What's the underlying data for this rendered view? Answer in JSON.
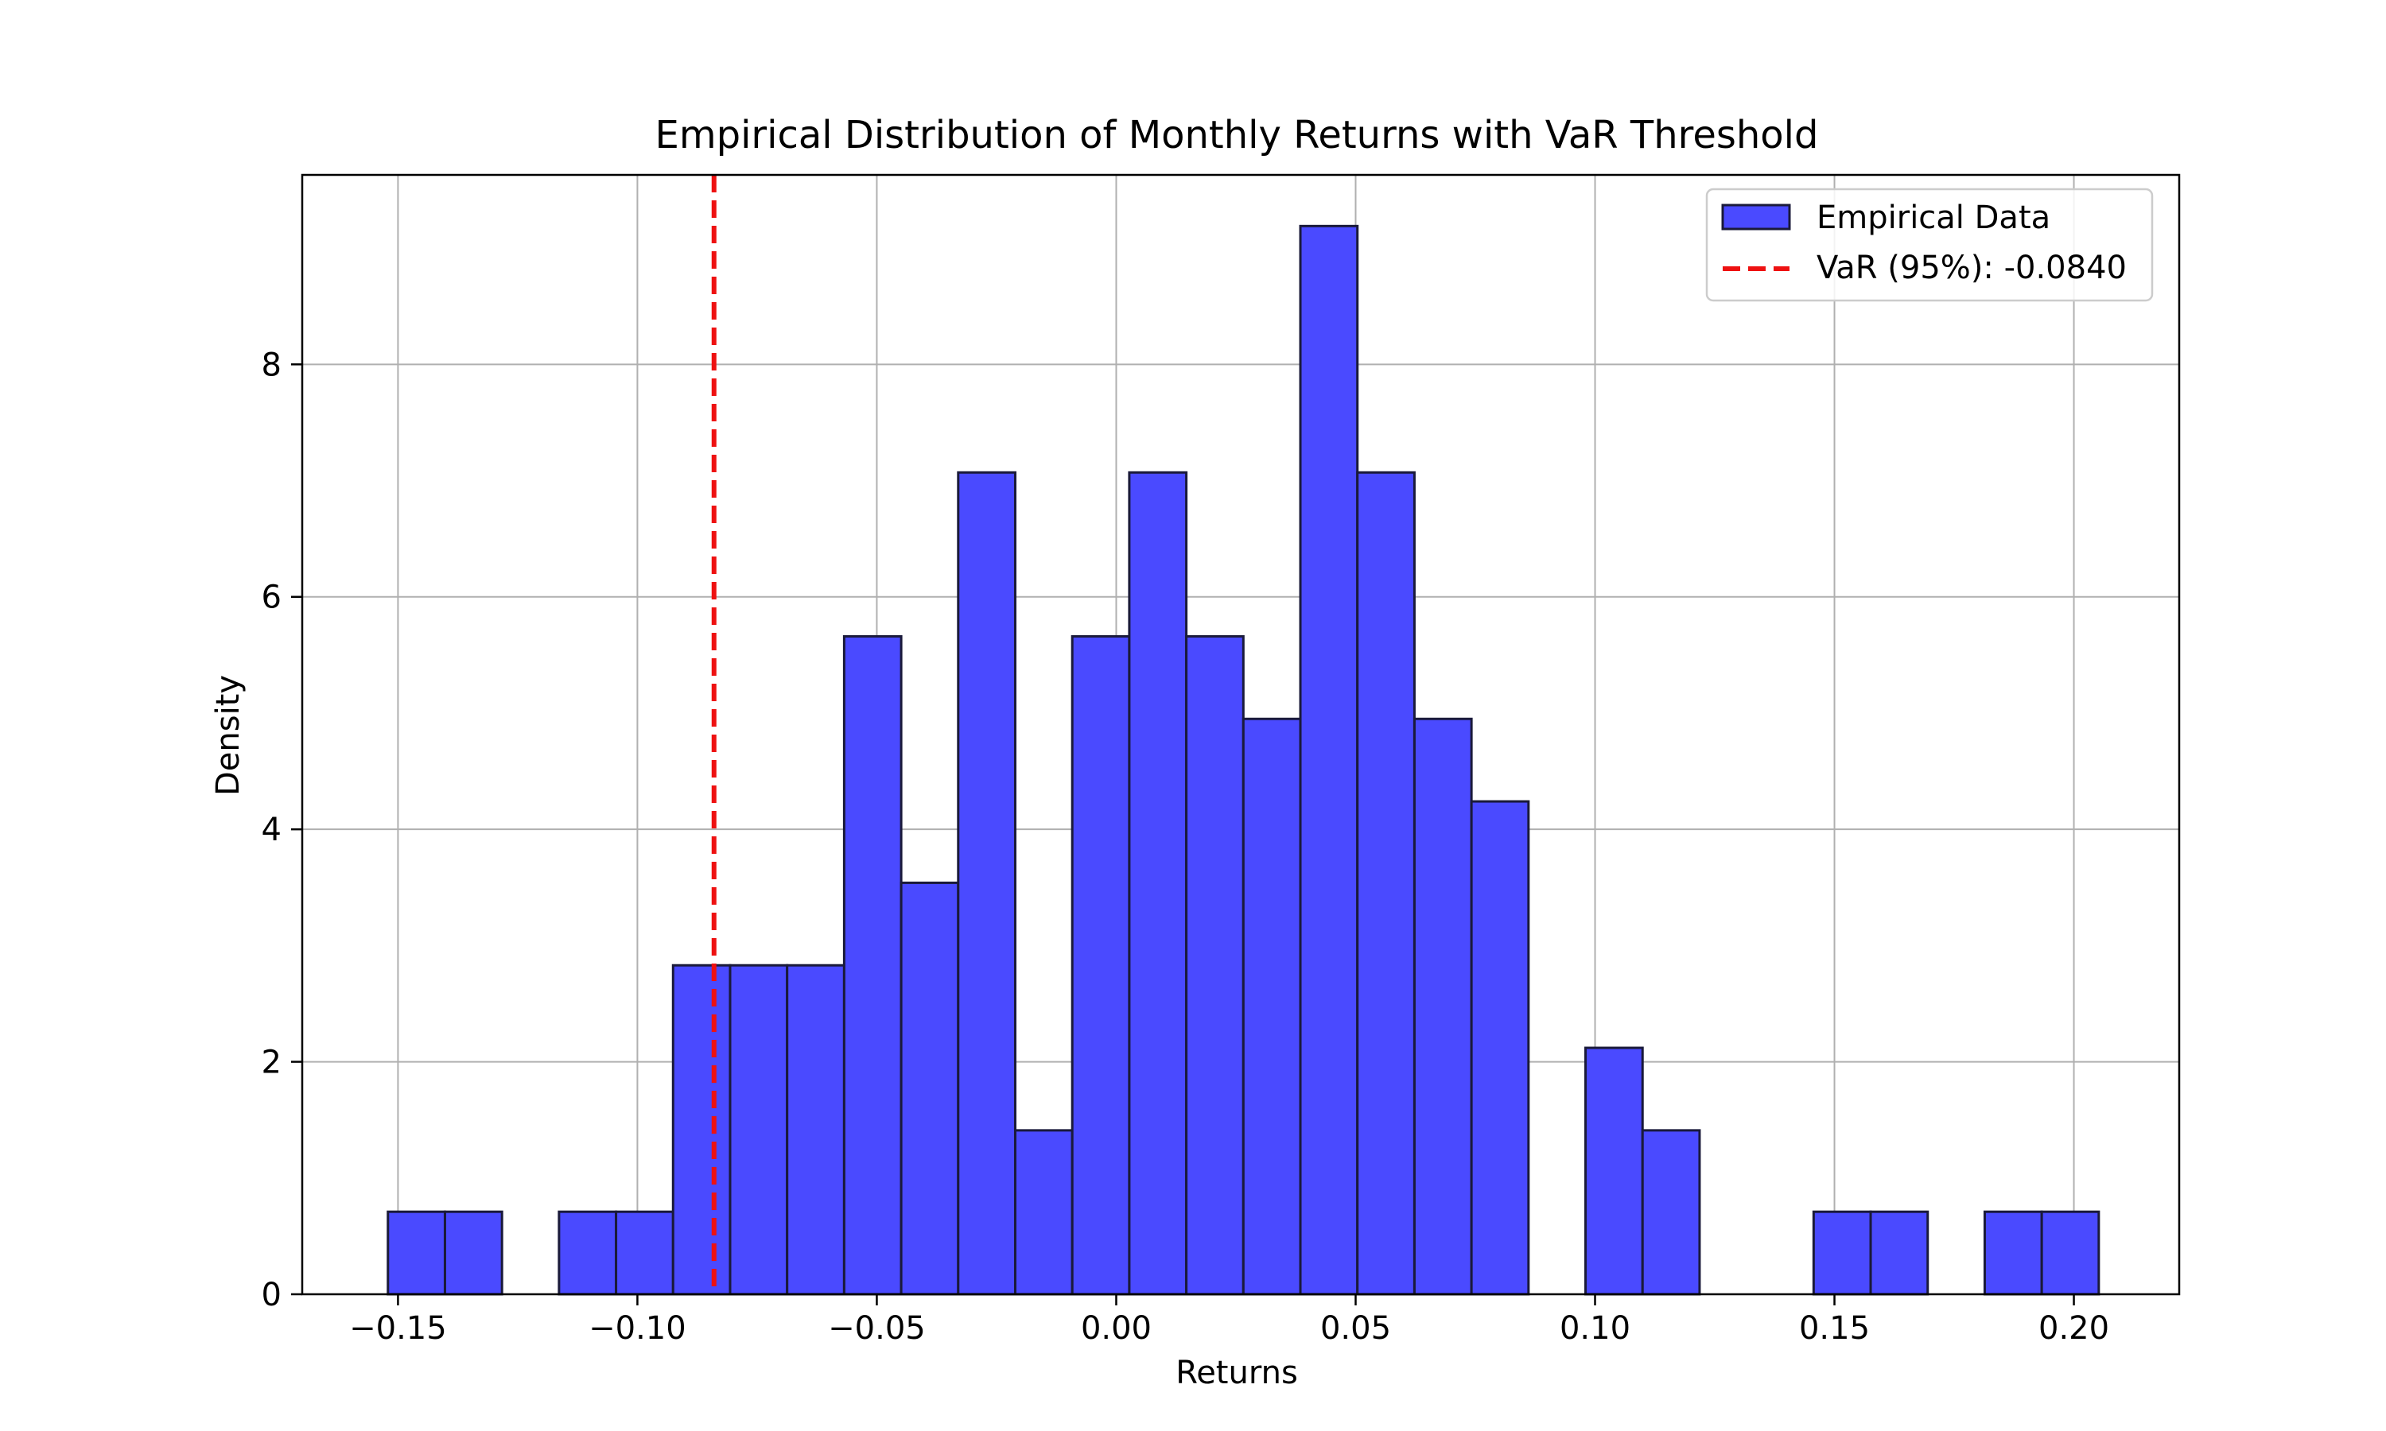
{
  "chart_data": {
    "type": "bar",
    "subtype": "histogram",
    "title": "Empirical Distribution of Monthly Returns with VaR Threshold",
    "xlabel": "Returns",
    "ylabel": "Density",
    "xlim": [
      -0.17,
      0.222
    ],
    "ylim": [
      0,
      9.63
    ],
    "xticks": [
      -0.15,
      -0.1,
      -0.05,
      0.0,
      0.05,
      0.1,
      0.15,
      0.2
    ],
    "xtick_labels": [
      "−0.15",
      "−0.10",
      "−0.05",
      "0.00",
      "0.05",
      "0.10",
      "0.15",
      "0.20"
    ],
    "yticks": [
      0,
      2,
      4,
      6,
      8
    ],
    "ytick_labels": [
      "0",
      "2",
      "4",
      "6",
      "8"
    ],
    "grid": true,
    "legend_position": "top-right",
    "bins": {
      "start": -0.1521,
      "width": 0.01191,
      "density": [
        0.71,
        0.71,
        0,
        0.71,
        0.71,
        2.83,
        2.83,
        2.83,
        5.66,
        3.54,
        7.07,
        1.41,
        5.66,
        7.07,
        5.66,
        4.95,
        9.19,
        7.07,
        4.95,
        4.24,
        0,
        2.12,
        1.41,
        0,
        0,
        0.71,
        0.71,
        0,
        0.71,
        0.71
      ]
    },
    "series": [
      {
        "name": "Empirical Data",
        "kind": "bars",
        "color": "#4a4aff",
        "edge_color": "#1a1a3a"
      },
      {
        "name": "VaR (95%): -0.0840",
        "kind": "vline",
        "x": -0.084,
        "color": "#ee1111",
        "style": "dashed"
      }
    ]
  }
}
